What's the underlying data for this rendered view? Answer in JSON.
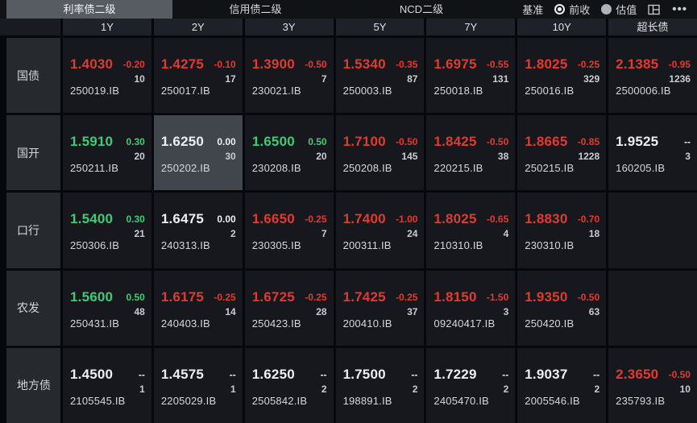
{
  "tabs": [
    {
      "label": "利率债二级",
      "active": true
    },
    {
      "label": "信用债二级",
      "active": false
    },
    {
      "label": "NCD二级",
      "active": false
    }
  ],
  "benchmark": {
    "label": "基准",
    "options": [
      {
        "label": "前收",
        "selected": true
      },
      {
        "label": "估值",
        "selected": false
      }
    ]
  },
  "toolbar": {
    "icons": [
      "layout-icon",
      "more-icon"
    ]
  },
  "colors": {
    "red": "#e23a30",
    "green": "#3ecb76",
    "neutral": "#eceef1"
  },
  "grid": {
    "columns": [
      "1Y",
      "2Y",
      "3Y",
      "5Y",
      "7Y",
      "10Y",
      "超长债"
    ],
    "rows": [
      {
        "label": "国债",
        "cells": [
          {
            "yield": "1.4030",
            "change": "-0.20",
            "volume": "10",
            "code": "250019.IB",
            "state": "red"
          },
          {
            "yield": "1.4275",
            "change": "-0.10",
            "volume": "17",
            "code": "250017.IB",
            "state": "red"
          },
          {
            "yield": "1.3900",
            "change": "-0.50",
            "volume": "7",
            "code": "230021.IB",
            "state": "red"
          },
          {
            "yield": "1.5340",
            "change": "-0.35",
            "volume": "87",
            "code": "250003.IB",
            "state": "red"
          },
          {
            "yield": "1.6975",
            "change": "-0.55",
            "volume": "131",
            "code": "250018.IB",
            "state": "red"
          },
          {
            "yield": "1.8025",
            "change": "-0.25",
            "volume": "329",
            "code": "250016.IB",
            "state": "red"
          },
          {
            "yield": "2.1385",
            "change": "-0.95",
            "volume": "1236",
            "code": "2500006.IB",
            "state": "red"
          }
        ]
      },
      {
        "label": "国开",
        "cells": [
          {
            "yield": "1.5910",
            "change": "0.30",
            "volume": "20",
            "code": "250211.IB",
            "state": "green"
          },
          {
            "yield": "1.6250",
            "change": "0.00",
            "volume": "30",
            "code": "250202.IB",
            "state": "neutral",
            "selected": true
          },
          {
            "yield": "1.6500",
            "change": "0.50",
            "volume": "20",
            "code": "230208.IB",
            "state": "green"
          },
          {
            "yield": "1.7100",
            "change": "-0.50",
            "volume": "145",
            "code": "250208.IB",
            "state": "red"
          },
          {
            "yield": "1.8425",
            "change": "-0.50",
            "volume": "38",
            "code": "220215.IB",
            "state": "red"
          },
          {
            "yield": "1.8665",
            "change": "-0.85",
            "volume": "1228",
            "code": "250215.IB",
            "state": "red"
          },
          {
            "yield": "1.9525",
            "change": "--",
            "volume": "3",
            "code": "160205.IB",
            "state": "neutral"
          }
        ]
      },
      {
        "label": "口行",
        "cells": [
          {
            "yield": "1.5400",
            "change": "0.30",
            "volume": "21",
            "code": "250306.IB",
            "state": "green"
          },
          {
            "yield": "1.6475",
            "change": "0.00",
            "volume": "2",
            "code": "240313.IB",
            "state": "neutral"
          },
          {
            "yield": "1.6650",
            "change": "-0.25",
            "volume": "7",
            "code": "230305.IB",
            "state": "red"
          },
          {
            "yield": "1.7400",
            "change": "-1.00",
            "volume": "24",
            "code": "200311.IB",
            "state": "red"
          },
          {
            "yield": "1.8025",
            "change": "-0.65",
            "volume": "4",
            "code": "210310.IB",
            "state": "red"
          },
          {
            "yield": "1.8830",
            "change": "-0.70",
            "volume": "18",
            "code": "230310.IB",
            "state": "red"
          },
          null
        ]
      },
      {
        "label": "农发",
        "cells": [
          {
            "yield": "1.5600",
            "change": "0.50",
            "volume": "48",
            "code": "250431.IB",
            "state": "green"
          },
          {
            "yield": "1.6175",
            "change": "-0.25",
            "volume": "14",
            "code": "240403.IB",
            "state": "red"
          },
          {
            "yield": "1.6725",
            "change": "-0.25",
            "volume": "28",
            "code": "250423.IB",
            "state": "red"
          },
          {
            "yield": "1.7425",
            "change": "-0.25",
            "volume": "37",
            "code": "200410.IB",
            "state": "red"
          },
          {
            "yield": "1.8150",
            "change": "-1.50",
            "volume": "3",
            "code": "09240417.IB",
            "state": "red"
          },
          {
            "yield": "1.9350",
            "change": "-0.50",
            "volume": "63",
            "code": "250420.IB",
            "state": "red"
          },
          null
        ]
      },
      {
        "label": "地方债",
        "cells": [
          {
            "yield": "1.4500",
            "change": "--",
            "volume": "1",
            "code": "2105545.IB",
            "state": "neutral"
          },
          {
            "yield": "1.4575",
            "change": "--",
            "volume": "1",
            "code": "2205029.IB",
            "state": "neutral"
          },
          {
            "yield": "1.6250",
            "change": "--",
            "volume": "2",
            "code": "2505842.IB",
            "state": "neutral"
          },
          {
            "yield": "1.7500",
            "change": "--",
            "volume": "2",
            "code": "198891.IB",
            "state": "neutral"
          },
          {
            "yield": "1.7229",
            "change": "--",
            "volume": "2",
            "code": "2405470.IB",
            "state": "neutral"
          },
          {
            "yield": "1.9037",
            "change": "--",
            "volume": "2",
            "code": "2005546.IB",
            "state": "neutral"
          },
          {
            "yield": "2.3650",
            "change": "-0.50",
            "volume": "10",
            "code": "235793.IB",
            "state": "red"
          }
        ]
      }
    ]
  }
}
